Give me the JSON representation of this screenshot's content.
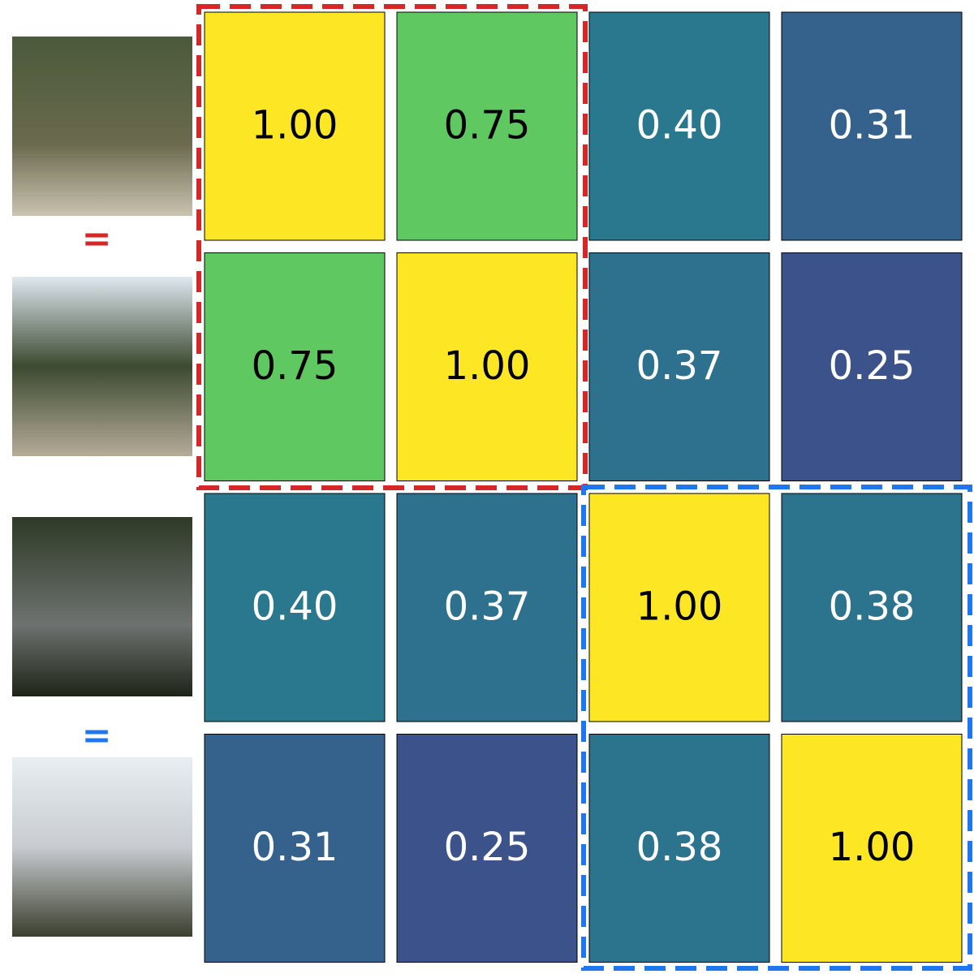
{
  "chart_data": {
    "type": "heatmap",
    "values": [
      [
        1.0,
        0.75,
        0.4,
        0.31
      ],
      [
        0.75,
        1.0,
        0.37,
        0.25
      ],
      [
        0.4,
        0.37,
        1.0,
        0.38
      ],
      [
        0.31,
        0.25,
        0.38,
        1.0
      ]
    ],
    "value_labels": [
      [
        "1.00",
        "0.75",
        "0.40",
        "0.31"
      ],
      [
        "0.75",
        "1.00",
        "0.37",
        "0.25"
      ],
      [
        "0.40",
        "0.37",
        "1.00",
        "0.38"
      ],
      [
        "0.31",
        "0.25",
        "0.38",
        "1.00"
      ]
    ],
    "colormap": "viridis",
    "clim": [
      0,
      1
    ],
    "annotations": [
      {
        "text": "=",
        "color": "#d62728"
      },
      {
        "text": "=",
        "color": "#1f77f0"
      }
    ]
  }
}
